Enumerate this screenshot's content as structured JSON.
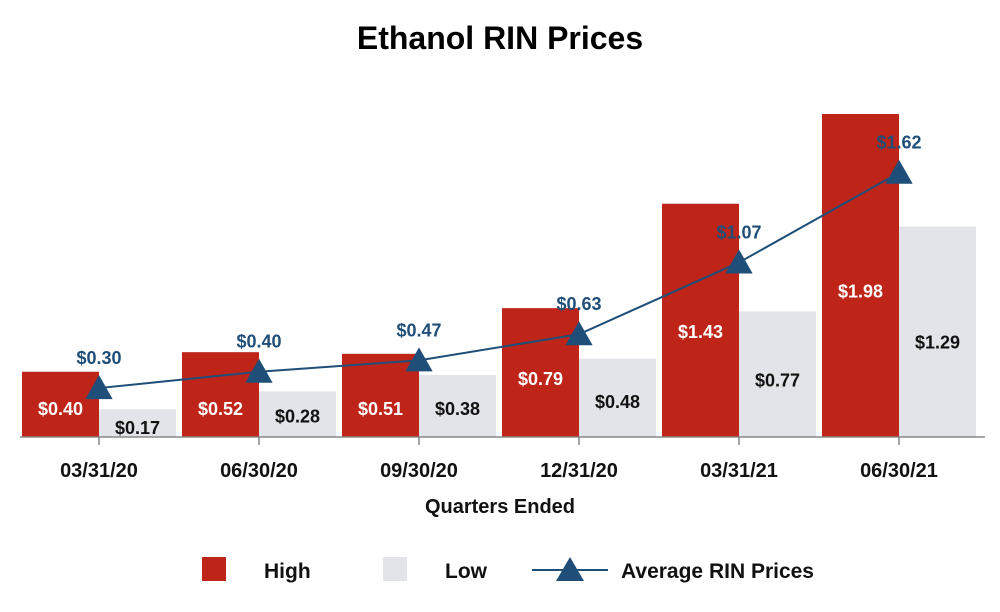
{
  "chart_data": {
    "type": "bar",
    "title": "Ethanol RIN Prices",
    "xlabel": "Quarters Ended",
    "ylabel": "",
    "ylim": [
      0,
      2.05
    ],
    "grid": false,
    "legend_position": "bottom",
    "categories": [
      "03/31/20",
      "06/30/20",
      "09/30/20",
      "12/31/20",
      "03/31/21",
      "06/30/21"
    ],
    "series": [
      {
        "name": "High",
        "kind": "bar",
        "color": "#bf2418",
        "values": [
          0.4,
          0.52,
          0.51,
          0.79,
          1.43,
          1.98
        ],
        "labels": [
          "$0.40",
          "$0.52",
          "$0.51",
          "$0.79",
          "$1.43",
          "$1.98"
        ]
      },
      {
        "name": "Low",
        "kind": "bar",
        "color": "#e3e4e9",
        "values": [
          0.17,
          0.28,
          0.38,
          0.48,
          0.77,
          1.29
        ],
        "labels": [
          "$0.17",
          "$0.28",
          "$0.38",
          "$0.48",
          "$0.77",
          "$1.29"
        ]
      },
      {
        "name": "Average RIN Prices",
        "kind": "line",
        "marker": "triangle",
        "color": "#1f4e79",
        "values": [
          0.3,
          0.4,
          0.47,
          0.63,
          1.07,
          1.62
        ],
        "labels": [
          "$0.30",
          "$0.40",
          "$0.47",
          "$0.63",
          "$1.07",
          "$1.62"
        ]
      }
    ]
  }
}
